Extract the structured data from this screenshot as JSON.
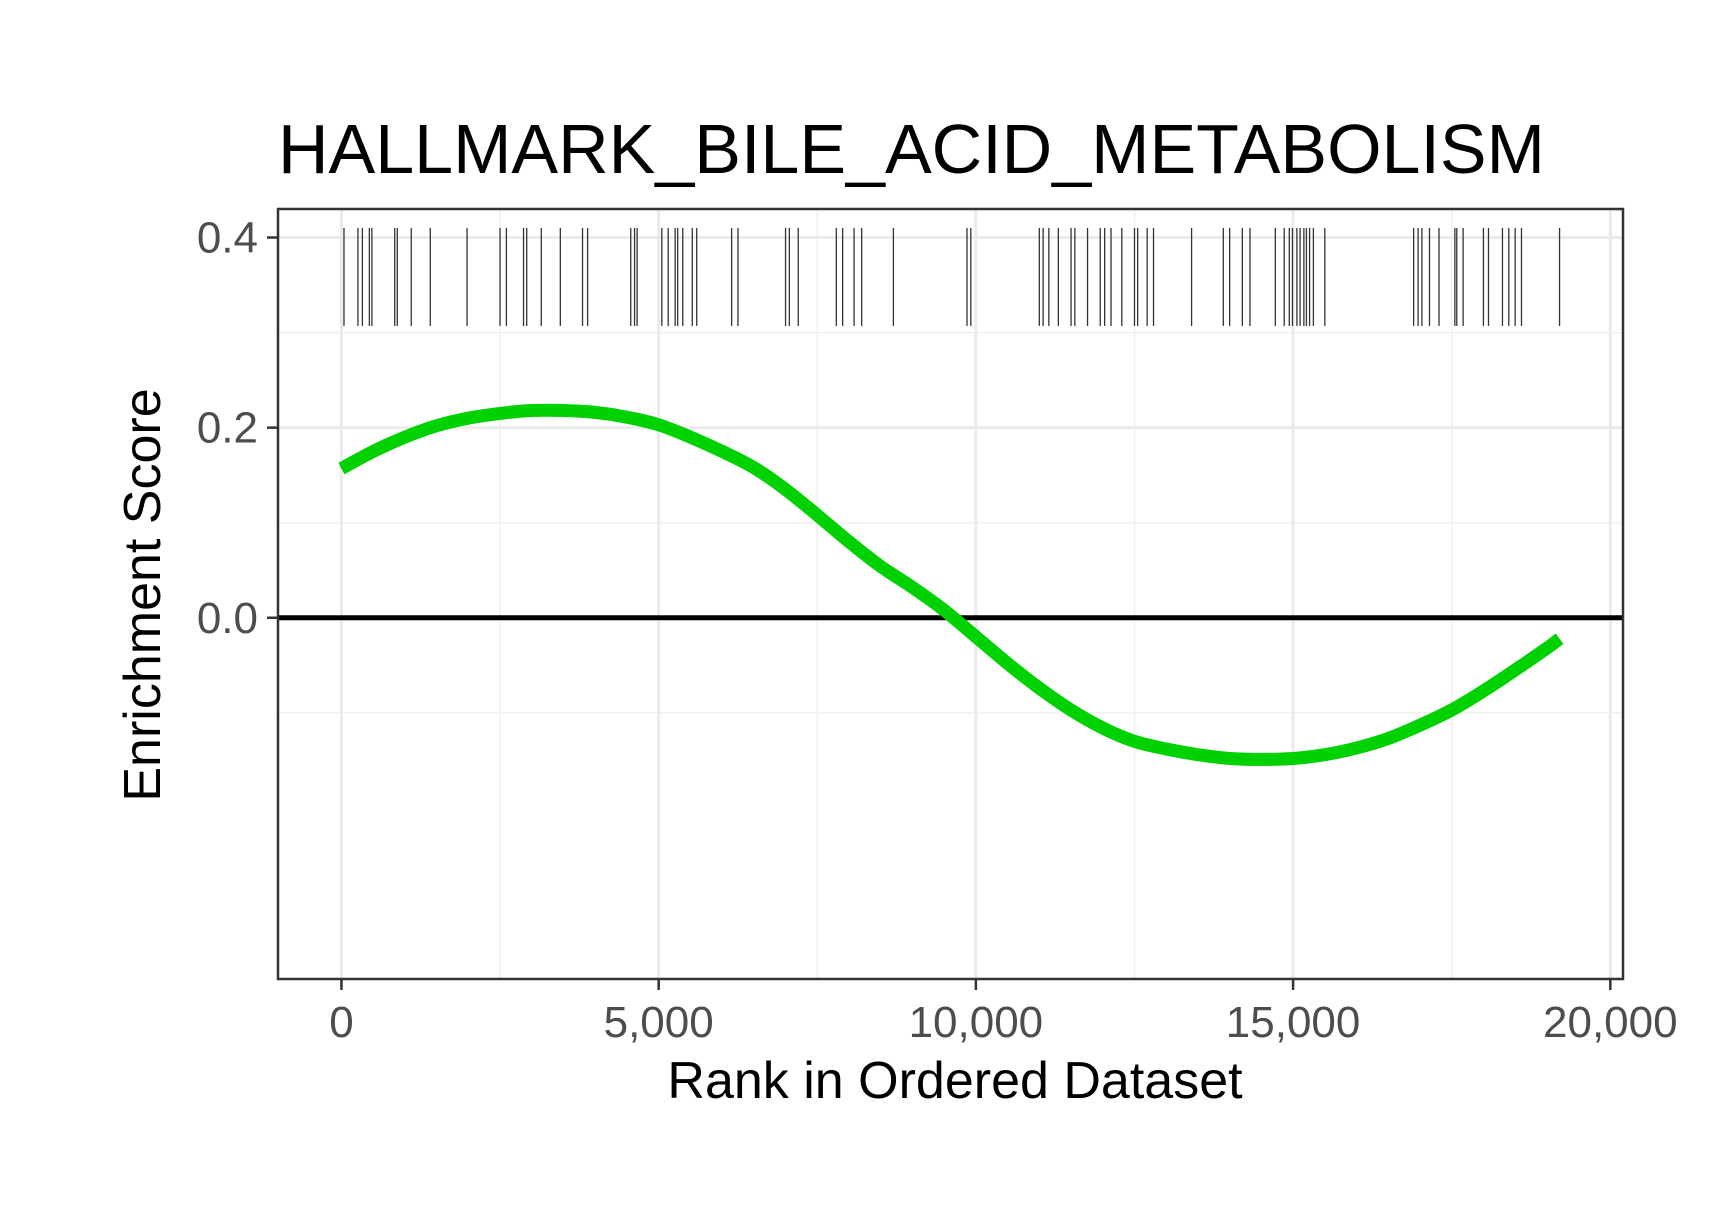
{
  "chart_data": {
    "type": "line",
    "title": "HALLMARK_BILE_ACID_METABOLISM",
    "xlabel": "Rank in Ordered Dataset",
    "ylabel": "Enrichment Score",
    "xlim": [
      -1000,
      20200
    ],
    "ylim": [
      -0.38,
      0.43
    ],
    "x_ticks": [
      0,
      5000,
      10000,
      15000,
      20000
    ],
    "x_tick_labels": [
      "0",
      "5,000",
      "10,000",
      "15,000",
      "20,000"
    ],
    "x_minor_ticks": [
      2500,
      7500,
      12500,
      17500
    ],
    "y_ticks": [
      0.0,
      0.2,
      0.4
    ],
    "y_tick_labels": [
      "0.0",
      "0.2",
      "0.4"
    ],
    "y_minor_ticks": [
      -0.1,
      0.1,
      0.3
    ],
    "grid": true,
    "series": [
      {
        "color": "#00d100",
        "x": [
          0,
          500,
          1000,
          1500,
          2000,
          2500,
          3000,
          3500,
          4000,
          4500,
          5000,
          5500,
          6000,
          6500,
          7000,
          7500,
          8000,
          8500,
          9000,
          9500,
          10000,
          10500,
          11000,
          11500,
          12000,
          12500,
          13000,
          13500,
          14000,
          14500,
          15000,
          15500,
          16000,
          16500,
          17000,
          17500,
          18000,
          18500,
          19000,
          19200
        ],
        "y": [
          0.157,
          0.175,
          0.19,
          0.202,
          0.21,
          0.215,
          0.218,
          0.218,
          0.216,
          0.211,
          0.203,
          0.19,
          0.175,
          0.158,
          0.135,
          0.108,
          0.08,
          0.054,
          0.032,
          0.008,
          -0.02,
          -0.048,
          -0.074,
          -0.097,
          -0.116,
          -0.13,
          -0.138,
          -0.144,
          -0.148,
          -0.149,
          -0.148,
          -0.144,
          -0.137,
          -0.127,
          -0.113,
          -0.097,
          -0.077,
          -0.055,
          -0.032,
          -0.022
        ]
      }
    ],
    "hline": {
      "y": 0,
      "color": "#000000"
    },
    "rug": {
      "color": "#333333",
      "y_range": [
        0.307,
        0.41
      ],
      "positions": [
        40,
        260,
        330,
        440,
        480,
        840,
        880,
        1100,
        1400,
        1980,
        2500,
        2600,
        2870,
        2920,
        3150,
        3450,
        3800,
        3880,
        4560,
        4620,
        4660,
        5050,
        5150,
        5260,
        5300,
        5380,
        5530,
        5600,
        6150,
        6250,
        7000,
        7060,
        7200,
        7800,
        7900,
        8080,
        8200,
        8700,
        9860,
        9920,
        11000,
        11060,
        11150,
        11300,
        11500,
        11560,
        11760,
        11960,
        12030,
        12130,
        12300,
        12500,
        12550,
        12700,
        12800,
        13400,
        13900,
        14000,
        14200,
        14320,
        14720,
        14860,
        14940,
        14990,
        15060,
        15110,
        15170,
        15210,
        15260,
        15320,
        15500,
        16900,
        16970,
        17030,
        17150,
        17300,
        17550,
        17580,
        17680,
        18000,
        18080,
        18300,
        18400,
        18500,
        18600,
        19200
      ]
    }
  }
}
